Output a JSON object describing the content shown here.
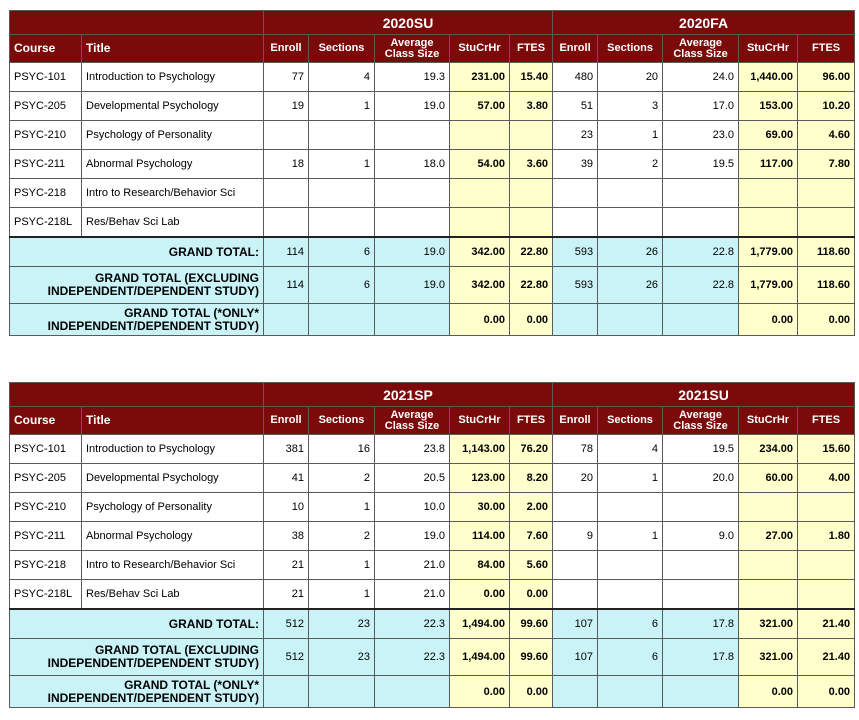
{
  "columns": {
    "course": "Course",
    "title": "Title",
    "enroll": "Enroll",
    "sections": "Sections",
    "avg_class_size": "Average Class Size",
    "stucrhr": "StuCrHr",
    "ftes": "FTES"
  },
  "tables": [
    {
      "terms": [
        "2020SU",
        "2020FA"
      ],
      "rows": [
        {
          "course": "PSYC-101",
          "title": "Introduction to Psychology",
          "a": [
            "77",
            "4",
            "19.3",
            "231.00",
            "15.40"
          ],
          "b": [
            "480",
            "20",
            "24.0",
            "1,440.00",
            "96.00"
          ]
        },
        {
          "course": "PSYC-205",
          "title": "Developmental Psychology",
          "a": [
            "19",
            "1",
            "19.0",
            "57.00",
            "3.80"
          ],
          "b": [
            "51",
            "3",
            "17.0",
            "153.00",
            "10.20"
          ]
        },
        {
          "course": "PSYC-210",
          "title": "Psychology of Personality",
          "a": [
            "",
            "",
            "",
            "",
            ""
          ],
          "b": [
            "23",
            "1",
            "23.0",
            "69.00",
            "4.60"
          ]
        },
        {
          "course": "PSYC-211",
          "title": "Abnormal Psychology",
          "a": [
            "18",
            "1",
            "18.0",
            "54.00",
            "3.60"
          ],
          "b": [
            "39",
            "2",
            "19.5",
            "117.00",
            "7.80"
          ]
        },
        {
          "course": "PSYC-218",
          "title": "Intro to Research/Behavior Sci",
          "a": [
            "",
            "",
            "",
            "",
            ""
          ],
          "b": [
            "",
            "",
            "",
            "",
            ""
          ]
        },
        {
          "course": "PSYC-218L",
          "title": "Res/Behav Sci Lab",
          "a": [
            "",
            "",
            "",
            "",
            ""
          ],
          "b": [
            "",
            "",
            "",
            "",
            ""
          ]
        }
      ],
      "totals": [
        {
          "label": "GRAND TOTAL:",
          "a": [
            "114",
            "6",
            "19.0",
            "342.00",
            "22.80"
          ],
          "b": [
            "593",
            "26",
            "22.8",
            "1,779.00",
            "118.60"
          ]
        },
        {
          "label": "GRAND TOTAL (EXCLUDING INDEPENDENT/DEPENDENT STUDY)",
          "a": [
            "114",
            "6",
            "19.0",
            "342.00",
            "22.80"
          ],
          "b": [
            "593",
            "26",
            "22.8",
            "1,779.00",
            "118.60"
          ]
        },
        {
          "label": "GRAND TOTAL (*ONLY* INDEPENDENT/DEPENDENT STUDY)",
          "a": [
            "",
            "",
            "",
            "0.00",
            "0.00"
          ],
          "b": [
            "",
            "",
            "",
            "0.00",
            "0.00"
          ]
        }
      ]
    },
    {
      "terms": [
        "2021SP",
        "2021SU"
      ],
      "rows": [
        {
          "course": "PSYC-101",
          "title": "Introduction to Psychology",
          "a": [
            "381",
            "16",
            "23.8",
            "1,143.00",
            "76.20"
          ],
          "b": [
            "78",
            "4",
            "19.5",
            "234.00",
            "15.60"
          ]
        },
        {
          "course": "PSYC-205",
          "title": "Developmental Psychology",
          "a": [
            "41",
            "2",
            "20.5",
            "123.00",
            "8.20"
          ],
          "b": [
            "20",
            "1",
            "20.0",
            "60.00",
            "4.00"
          ]
        },
        {
          "course": "PSYC-210",
          "title": "Psychology of Personality",
          "a": [
            "10",
            "1",
            "10.0",
            "30.00",
            "2.00"
          ],
          "b": [
            "",
            "",
            "",
            "",
            ""
          ]
        },
        {
          "course": "PSYC-211",
          "title": "Abnormal Psychology",
          "a": [
            "38",
            "2",
            "19.0",
            "114.00",
            "7.60"
          ],
          "b": [
            "9",
            "1",
            "9.0",
            "27.00",
            "1.80"
          ]
        },
        {
          "course": "PSYC-218",
          "title": "Intro to Research/Behavior Sci",
          "a": [
            "21",
            "1",
            "21.0",
            "84.00",
            "5.60"
          ],
          "b": [
            "",
            "",
            "",
            "",
            ""
          ]
        },
        {
          "course": "PSYC-218L",
          "title": "Res/Behav Sci Lab",
          "a": [
            "21",
            "1",
            "21.0",
            "0.00",
            "0.00"
          ],
          "b": [
            "",
            "",
            "",
            "",
            ""
          ]
        }
      ],
      "totals": [
        {
          "label": "GRAND TOTAL:",
          "a": [
            "512",
            "23",
            "22.3",
            "1,494.00",
            "99.60"
          ],
          "b": [
            "107",
            "6",
            "17.8",
            "321.00",
            "21.40"
          ]
        },
        {
          "label": "GRAND TOTAL (EXCLUDING INDEPENDENT/DEPENDENT STUDY)",
          "a": [
            "512",
            "23",
            "22.3",
            "1,494.00",
            "99.60"
          ],
          "b": [
            "107",
            "6",
            "17.8",
            "321.00",
            "21.40"
          ]
        },
        {
          "label": "GRAND TOTAL (*ONLY* INDEPENDENT/DEPENDENT STUDY)",
          "a": [
            "",
            "",
            "",
            "0.00",
            "0.00"
          ],
          "b": [
            "",
            "",
            "",
            "0.00",
            "0.00"
          ]
        }
      ]
    }
  ]
}
